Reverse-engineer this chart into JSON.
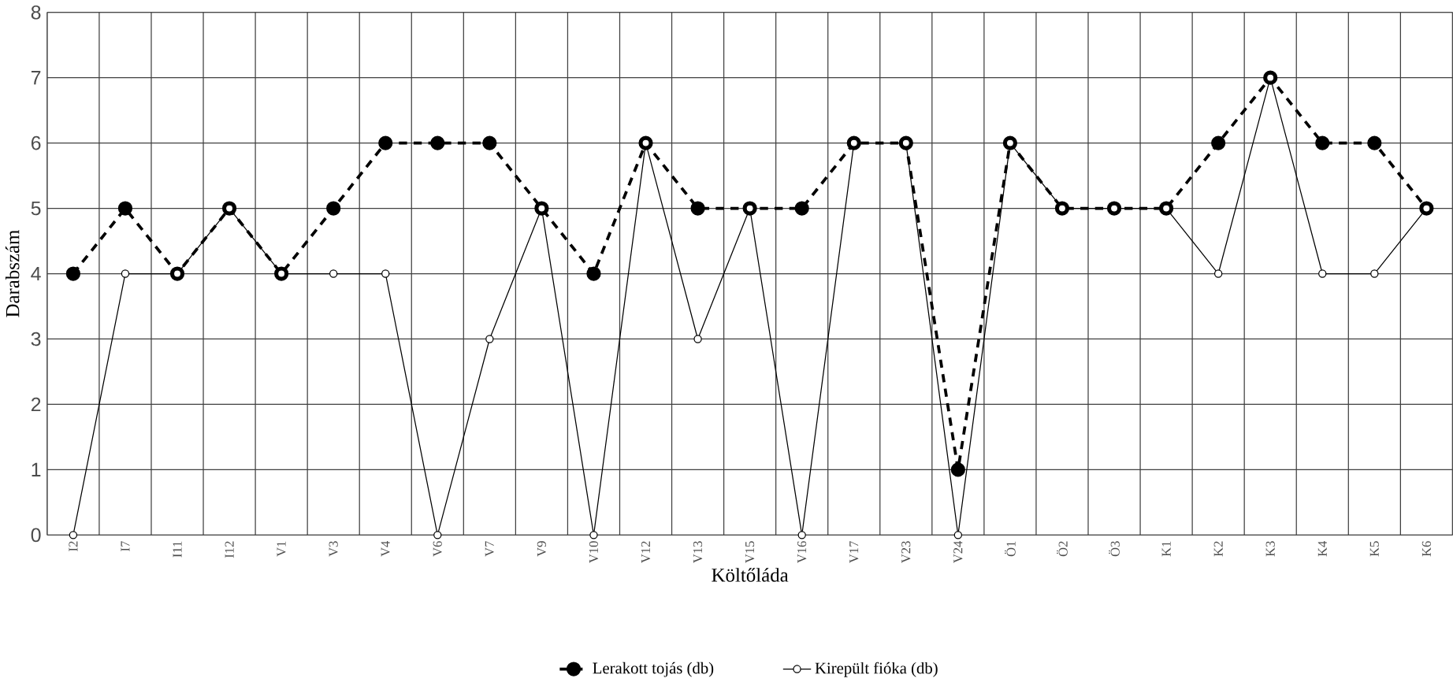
{
  "chart_data": {
    "type": "line",
    "xlabel": "Költőláda",
    "ylabel": "Darabszám",
    "categories": [
      "I2",
      "I7",
      "I11",
      "I12",
      "V1",
      "V3",
      "V4",
      "V6",
      "V7",
      "V9",
      "V10",
      "V12",
      "V13",
      "V15",
      "V16",
      "V17",
      "V23",
      "V24",
      "Ö1",
      "Ö2",
      "Ö3",
      "K1",
      "K2",
      "K3",
      "K4",
      "K5",
      "K6"
    ],
    "series": [
      {
        "name": "Lerakott tojás (db)",
        "color": "#000000",
        "line_style": "dashed",
        "marker": "circle",
        "values": [
          4,
          5,
          4,
          5,
          4,
          5,
          6,
          6,
          6,
          5,
          4,
          6,
          5,
          5,
          5,
          6,
          6,
          1,
          6,
          5,
          5,
          5,
          6,
          7,
          6,
          6,
          5
        ]
      },
      {
        "name": "Kirepült fióka (db)",
        "color": "#000000",
        "line_style": "solid",
        "marker": "circle",
        "values": [
          0,
          4,
          4,
          5,
          4,
          4,
          4,
          0,
          3,
          5,
          0,
          6,
          3,
          5,
          0,
          6,
          6,
          0,
          6,
          5,
          5,
          5,
          4,
          7,
          4,
          4,
          5
        ]
      }
    ],
    "ylim": [
      0,
      8
    ],
    "yticks": [
      0,
      1,
      2,
      3,
      4,
      5,
      6,
      7,
      8
    ],
    "grid": true,
    "legend": "bottom"
  }
}
